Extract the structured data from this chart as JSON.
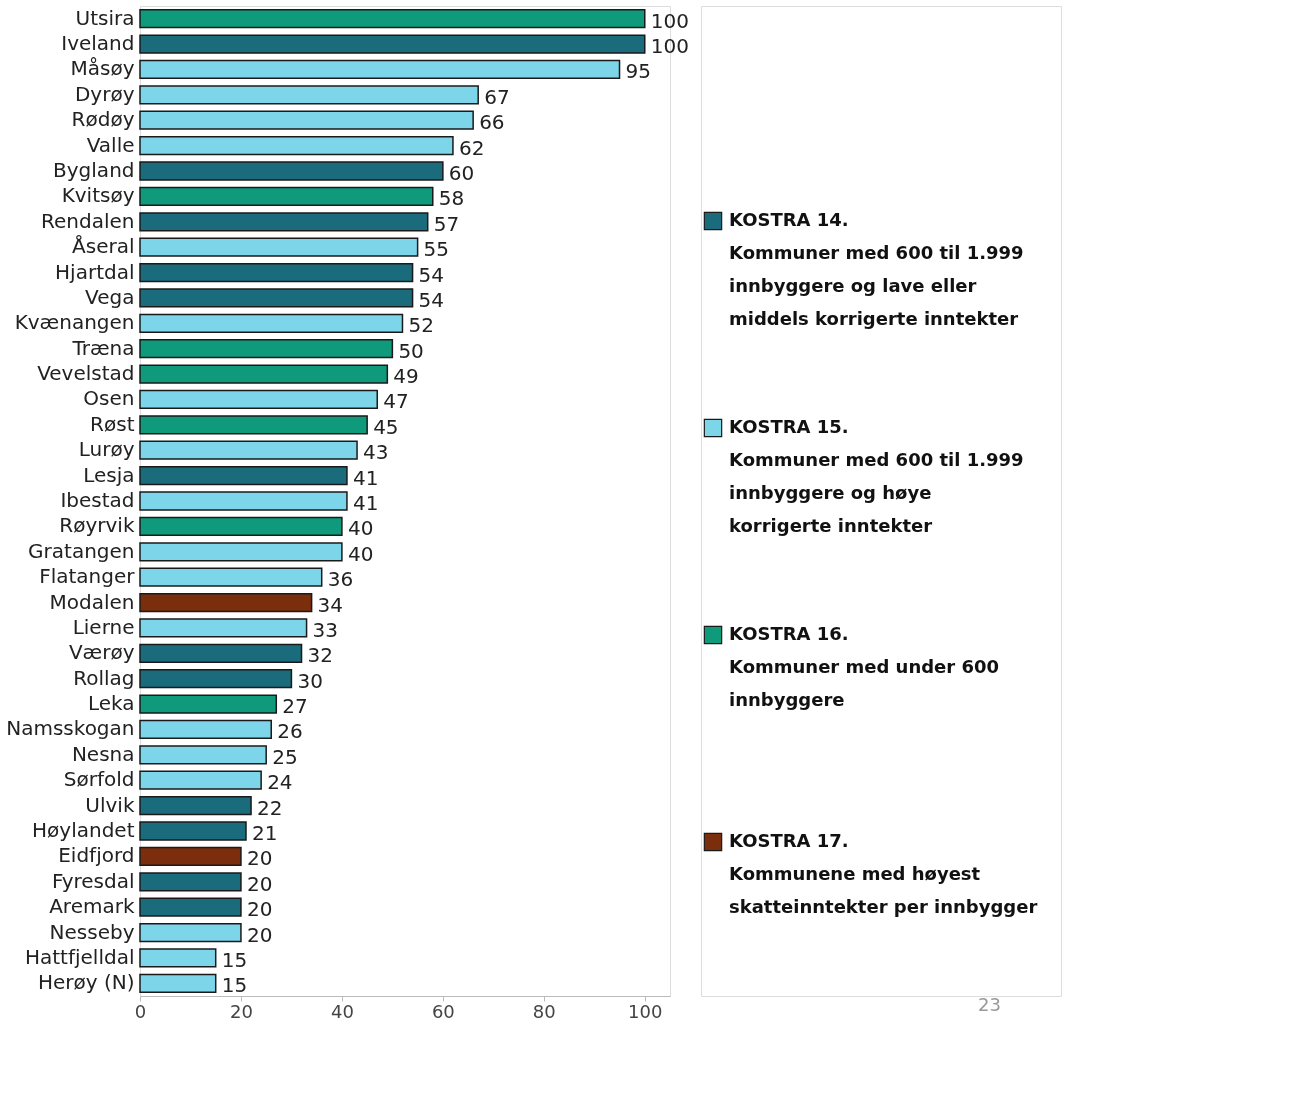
{
  "chart_data": {
    "type": "bar",
    "orientation": "horizontal",
    "stacked": true,
    "data_labels": true,
    "legend": "right",
    "grid": false,
    "categories": [
      "Utsira",
      "Iveland",
      "Måsøy",
      "Dyrøy",
      "Rødøy",
      "Valle",
      "Bygland",
      "Kvitsøy",
      "Rendalen",
      "Åseral",
      "Hjartdal",
      "Vega",
      "Kvænangen",
      "Træna",
      "Vevelstad",
      "Osen",
      "Røst",
      "Lurøy",
      "Lesja",
      "Ibestad",
      "Røyrvik",
      "Gratangen",
      "Flatanger",
      "Modalen",
      "Lierne",
      "Værøy",
      "Rollag",
      "Leka",
      "Namsskogan",
      "Nesna",
      "Sørfold",
      "Ulvik",
      "Høylandet",
      "Eidfjord",
      "Fyresdal",
      "Aremark",
      "Nesseby",
      "Hattfjelldal",
      "Herøy (N)"
    ],
    "xlim": [
      0,
      105
    ],
    "xticks": [
      0,
      20,
      40,
      60,
      80,
      100
    ],
    "series": [
      {
        "name": "KOSTRA 14.\nKommuner med 600 til 1.999\ninnbyggere og lave eller\nmiddels korrigerte inntekter",
        "color": "#1a6b7c",
        "values": [
          null,
          100,
          null,
          null,
          null,
          null,
          60,
          null,
          57,
          null,
          54,
          54,
          null,
          null,
          null,
          null,
          null,
          null,
          41,
          null,
          null,
          null,
          null,
          null,
          null,
          32,
          30,
          null,
          null,
          null,
          null,
          22,
          21,
          null,
          20,
          20,
          null,
          null,
          null
        ]
      },
      {
        "name": "KOSTRA 15.\nKommuner med 600 til 1.999\ninnbyggere og høye\nkorrigerte inntekter",
        "color": "#7dd5ea",
        "values": [
          null,
          null,
          95,
          67,
          66,
          62,
          null,
          null,
          null,
          55,
          null,
          null,
          52,
          null,
          null,
          47,
          null,
          43,
          null,
          41,
          null,
          40,
          36,
          null,
          33,
          null,
          null,
          null,
          26,
          25,
          24,
          null,
          null,
          null,
          null,
          null,
          20,
          15,
          15
        ]
      },
      {
        "name": "KOSTRA 16.\nKommuner med under 600\ninnbyggere",
        "color": "#0e9a7b",
        "values": [
          100,
          null,
          null,
          null,
          null,
          null,
          null,
          58,
          null,
          null,
          null,
          null,
          null,
          50,
          49,
          null,
          45,
          null,
          null,
          null,
          40,
          null,
          null,
          null,
          null,
          null,
          null,
          27,
          null,
          null,
          null,
          null,
          null,
          null,
          null,
          null,
          null,
          null,
          null
        ]
      },
      {
        "name": "KOSTRA 17.\nKommunene med høyest\nskatteinntekter per innbygger",
        "color": "#7a2e0c",
        "values": [
          null,
          null,
          null,
          null,
          null,
          null,
          null,
          null,
          null,
          null,
          null,
          null,
          null,
          null,
          null,
          null,
          null,
          null,
          null,
          null,
          null,
          null,
          null,
          34,
          null,
          null,
          null,
          null,
          null,
          null,
          null,
          null,
          null,
          20,
          null,
          null,
          null,
          null,
          null
        ]
      }
    ],
    "annotations": [
      "23"
    ]
  }
}
